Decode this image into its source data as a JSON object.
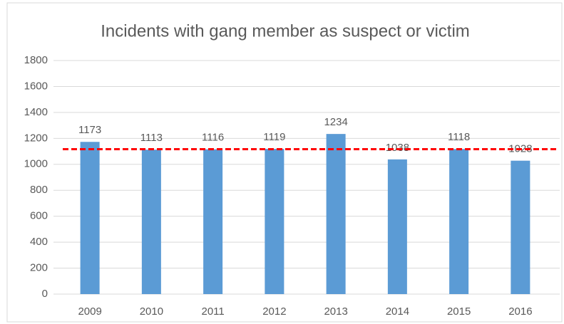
{
  "chart_data": {
    "type": "bar",
    "title": "Incidents with gang member as suspect or victim",
    "categories": [
      "2009",
      "2010",
      "2011",
      "2012",
      "2013",
      "2014",
      "2015",
      "2016"
    ],
    "values": [
      1173,
      1113,
      1116,
      1119,
      1234,
      1038,
      1118,
      1028
    ],
    "color": "#5b9bd5",
    "ylim": [
      0,
      1800
    ],
    "yticks": [
      0,
      200,
      400,
      600,
      800,
      1000,
      1200,
      1400,
      1600,
      1800
    ],
    "grid": true,
    "reference_line": {
      "value": 1117,
      "color": "#ff0000"
    }
  }
}
